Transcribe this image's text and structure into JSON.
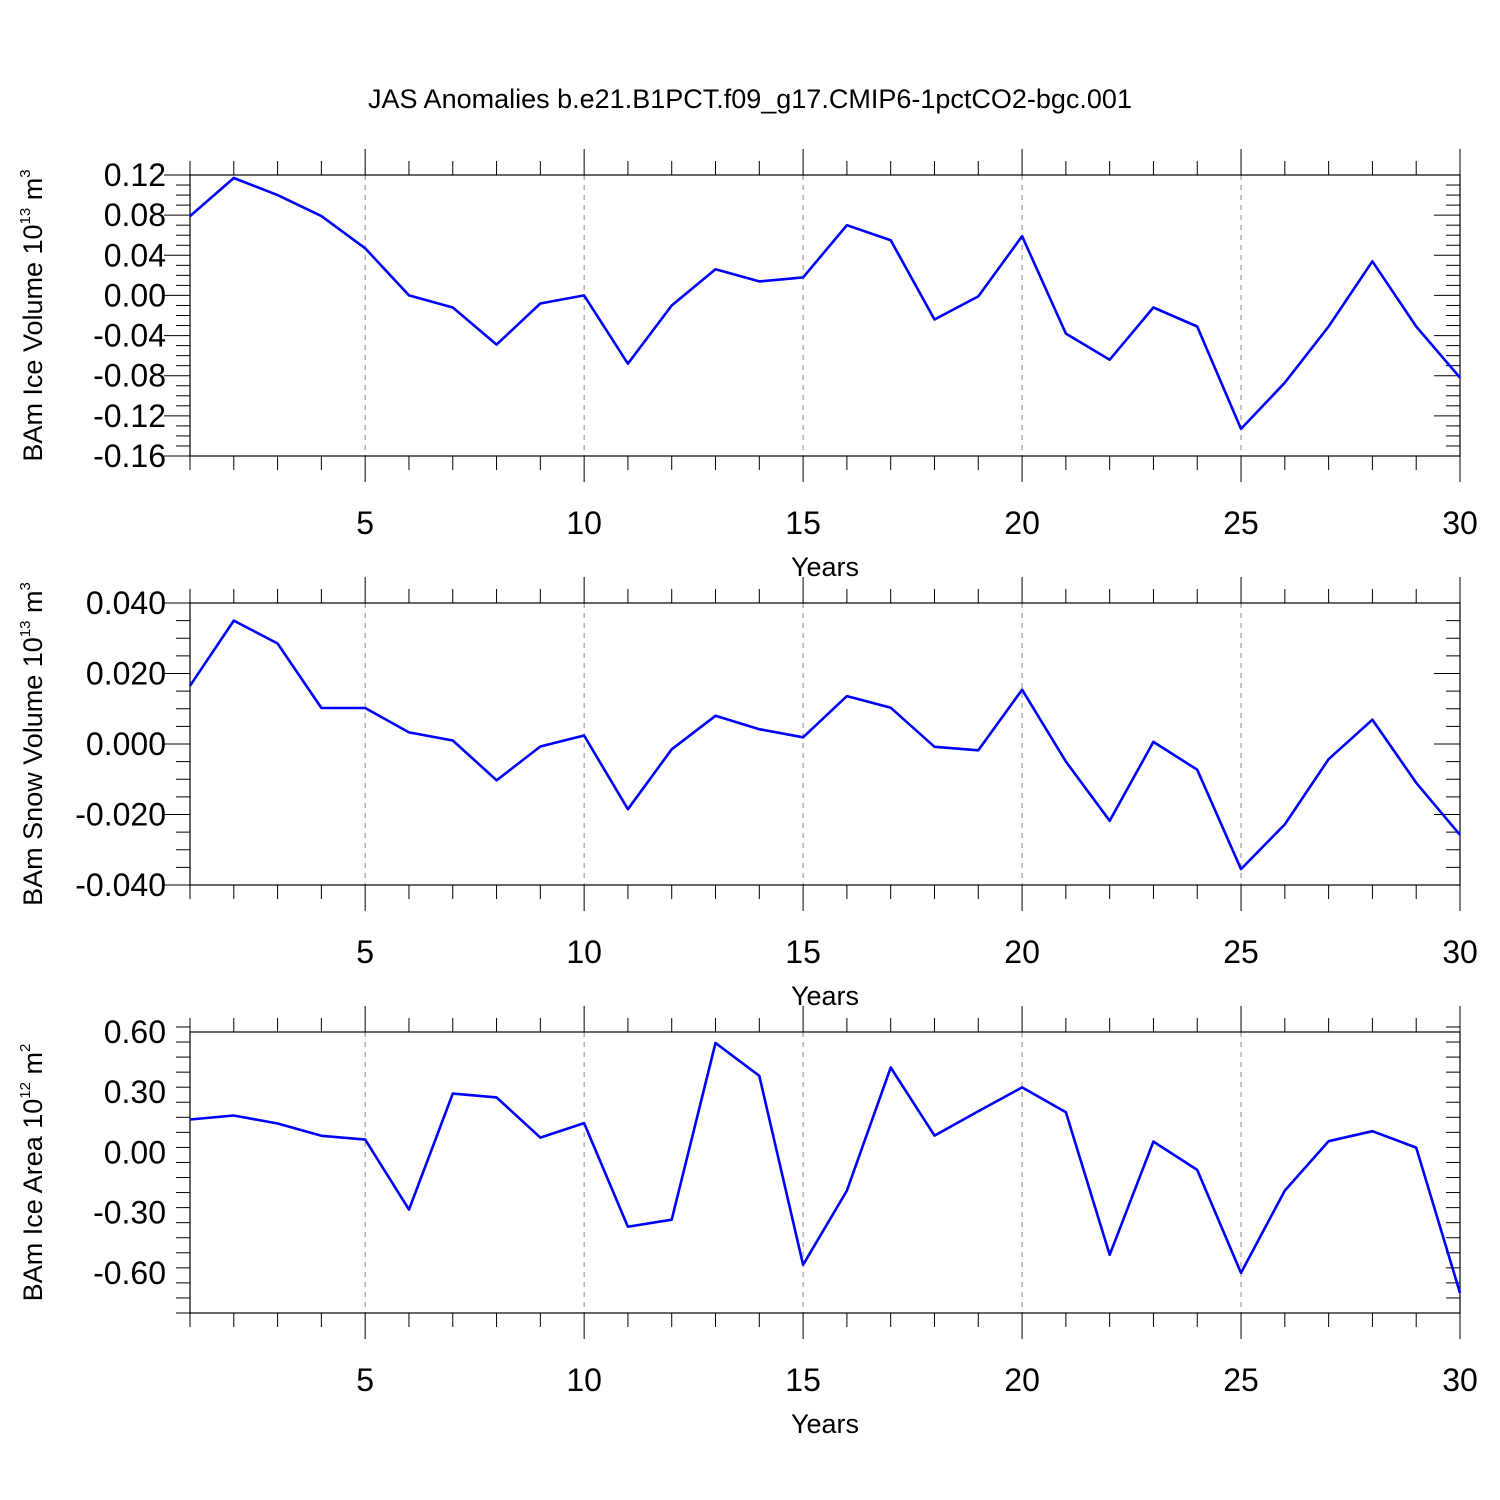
{
  "title": "JAS Anomalies b.e21.B1PCT.f09_g17.CMIP6-1pctCO2-bgc.001",
  "colors": {
    "line": "#0000ff",
    "grid": "#888888",
    "axis": "#000000"
  },
  "chart_data": [
    {
      "type": "line",
      "xlabel": "Years",
      "ylabel": {
        "prefix": "BAm Ice Volume 10",
        "exponent": "13",
        "unit": " m",
        "unit_exponent": "3"
      },
      "xlim": [
        1,
        30
      ],
      "ylim": [
        -0.16,
        0.12
      ],
      "x_ticks": [
        5,
        10,
        15,
        20,
        25,
        30
      ],
      "y_ticks": [
        -0.16,
        -0.12,
        -0.08,
        -0.04,
        0.0,
        0.04,
        0.08,
        0.12
      ],
      "y_tick_labels": [
        "-0.16",
        "-0.12",
        "-0.08",
        "-0.04",
        "0.00",
        "0.04",
        "0.08",
        "0.12"
      ],
      "series": [
        {
          "x": [
            1,
            2,
            3,
            4,
            5,
            6,
            7,
            8,
            9,
            10,
            11,
            12,
            13,
            14,
            15,
            16,
            17,
            18,
            19,
            20,
            21,
            22,
            23,
            24,
            25,
            26,
            27,
            28,
            29,
            30
          ],
          "values": [
            0.079,
            0.117,
            0.1,
            0.079,
            0.047,
            0.0,
            -0.012,
            -0.049,
            -0.008,
            0.0,
            -0.068,
            -0.01,
            0.026,
            0.014,
            0.018,
            0.07,
            0.055,
            -0.024,
            -0.001,
            0.059,
            -0.038,
            -0.064,
            -0.012,
            -0.031,
            -0.133,
            -0.087,
            -0.031,
            0.034,
            -0.031,
            -0.082
          ]
        }
      ]
    },
    {
      "type": "line",
      "xlabel": "Years",
      "ylabel": {
        "prefix": "BAm Snow Volume 10",
        "exponent": "13",
        "unit": " m",
        "unit_exponent": "3"
      },
      "xlim": [
        1,
        30
      ],
      "ylim": [
        -0.04,
        0.04
      ],
      "x_ticks": [
        5,
        10,
        15,
        20,
        25,
        30
      ],
      "y_ticks": [
        -0.04,
        -0.02,
        0.0,
        0.02,
        0.04
      ],
      "y_tick_labels": [
        "-0.040",
        "-0.020",
        "0.000",
        "0.020",
        "0.040"
      ],
      "series": [
        {
          "x": [
            1,
            2,
            3,
            4,
            5,
            6,
            7,
            8,
            9,
            10,
            11,
            12,
            13,
            14,
            15,
            16,
            17,
            18,
            19,
            20,
            21,
            22,
            23,
            24,
            25,
            26,
            27,
            28,
            29,
            30
          ],
          "values": [
            0.0165,
            0.035,
            0.0285,
            0.0102,
            0.0102,
            0.0033,
            0.001,
            -0.0103,
            -0.0007,
            0.0024,
            -0.0185,
            -0.0015,
            0.008,
            0.0042,
            0.0019,
            0.0136,
            0.0103,
            -0.0008,
            -0.0018,
            0.0154,
            -0.005,
            -0.0218,
            0.0006,
            -0.0073,
            -0.0355,
            -0.0228,
            -0.0043,
            0.0069,
            -0.011,
            -0.0258
          ]
        }
      ]
    },
    {
      "type": "line",
      "xlabel": "Years",
      "ylabel": {
        "prefix": "BAm Ice Area 10",
        "exponent": "12",
        "unit": " m",
        "unit_exponent": "2"
      },
      "xlim": [
        1,
        30
      ],
      "ylim": [
        -0.8,
        0.6
      ],
      "x_ticks": [
        5,
        10,
        15,
        20,
        25,
        30
      ],
      "y_ticks": [
        -0.6,
        -0.3,
        0.0,
        0.3,
        0.6
      ],
      "y_tick_labels": [
        "-0.60",
        "-0.30",
        "0.00",
        "0.30",
        "0.60"
      ],
      "series": [
        {
          "x": [
            1,
            2,
            3,
            4,
            5,
            6,
            7,
            8,
            9,
            10,
            11,
            12,
            13,
            14,
            15,
            16,
            17,
            18,
            19,
            20,
            21,
            22,
            23,
            24,
            25,
            26,
            27,
            28,
            29,
            30
          ],
          "values": [
            0.164,
            0.184,
            0.144,
            0.083,
            0.064,
            -0.285,
            0.293,
            0.274,
            0.074,
            0.146,
            -0.37,
            -0.335,
            0.545,
            0.382,
            -0.56,
            -0.19,
            0.423,
            0.084,
            0.205,
            0.324,
            0.2,
            -0.51,
            0.054,
            -0.087,
            -0.6,
            -0.19,
            0.056,
            0.106,
            0.024,
            -0.7
          ]
        }
      ]
    }
  ]
}
